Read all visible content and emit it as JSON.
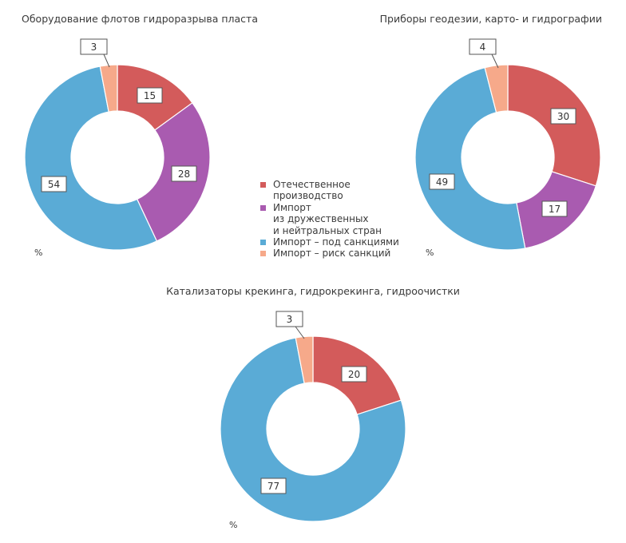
{
  "colors": {
    "domestic": "#d35b5b",
    "friendly_import": "#a95bb0",
    "sanctioned_import": "#5aabd6",
    "risk_import": "#f6a98a"
  },
  "legend": {
    "items": [
      {
        "key": "domestic",
        "label": "Отечественное\nпроизводство"
      },
      {
        "key": "friendly_import",
        "label": "Импорт\nиз дружественных\nи нейтральных стран"
      },
      {
        "key": "sanctioned_import",
        "label": "Импорт – под санкциями"
      },
      {
        "key": "risk_import",
        "label": "Импорт – риск санкций"
      }
    ]
  },
  "chart_data": [
    {
      "type": "pie",
      "title": "Оборудование флотов гидроразрыва пласта",
      "unit": "%",
      "labels": [
        "Отечественное производство",
        "Импорт из дружественных и нейтральных стран",
        "Импорт – под санкциями",
        "Импорт – риск санкций"
      ],
      "values": [
        15,
        28,
        54,
        3
      ]
    },
    {
      "type": "pie",
      "title": "Приборы геодезии, карто- и гидрографии",
      "unit": "%",
      "labels": [
        "Отечественное производство",
        "Импорт из дружественных и нейтральных стран",
        "Импорт – под санкциями",
        "Импорт – риск санкций"
      ],
      "values": [
        30,
        17,
        49,
        4
      ]
    },
    {
      "type": "pie",
      "title": "Катализаторы крекинга, гидрокрекинга, гидроочистки",
      "unit": "%",
      "labels": [
        "Отечественное производство",
        "Импорт из дружественных и нейтральных стран",
        "Импорт – под санкциями",
        "Импорт – риск санкций"
      ],
      "values": [
        20,
        0,
        77,
        3
      ]
    }
  ]
}
